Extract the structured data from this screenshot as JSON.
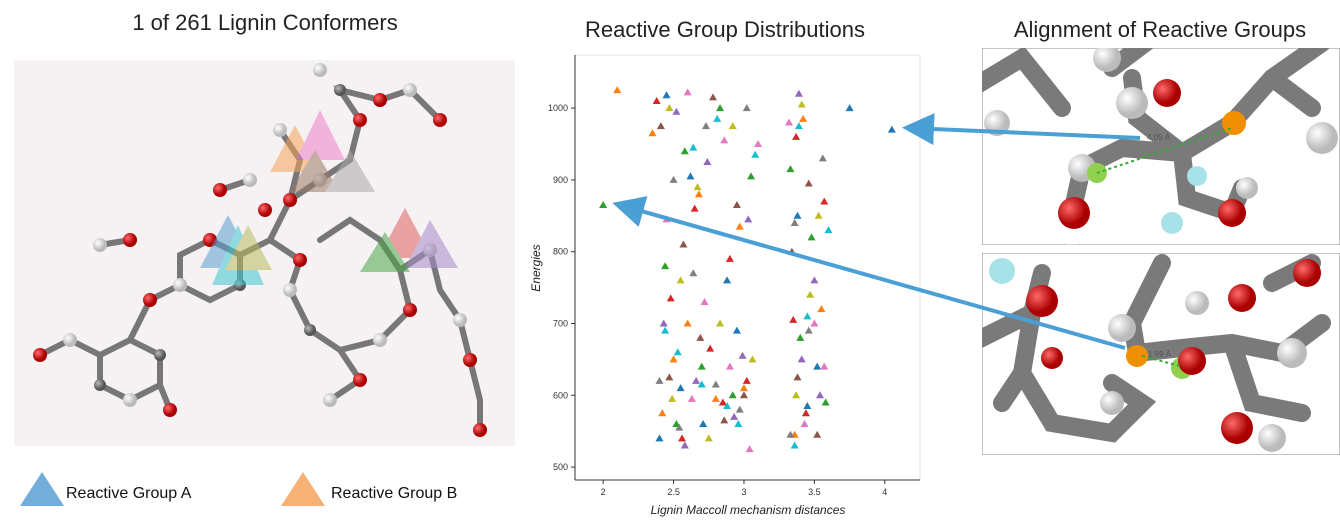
{
  "left_panel": {
    "title": "1 of 261 Lignin Conformers",
    "legend": [
      "Reactive Group A",
      "Reactive Group B"
    ]
  },
  "right_panel": {
    "title": "Alignment of Reactive Groups",
    "annotations": [
      "4.05 Å",
      "1.99 Å"
    ]
  },
  "chart_data": {
    "type": "scatter",
    "title": "Reactive Group Distributions",
    "x_label": "Lignin Maccoll mechanism distances",
    "y_label": "Energies",
    "xlim": [
      1.8,
      4.25
    ],
    "ylim": [
      482,
      1074
    ],
    "xticks": [
      2,
      2.5,
      3,
      3.5,
      4
    ],
    "yticks": [
      500,
      600,
      700,
      800,
      900,
      1000
    ],
    "series": [
      {
        "color": "#1f77b4",
        "x": [
          4.05,
          3.75,
          2.45,
          2.62,
          2.88,
          3.38,
          3.52,
          2.55,
          2.71,
          3.45,
          2.95,
          2.4
        ],
        "y": [
          970,
          1000,
          1018,
          905,
          760,
          850,
          640,
          610,
          560,
          585,
          690,
          540
        ]
      },
      {
        "color": "#ff7f0e",
        "x": [
          2.1,
          2.35,
          2.68,
          2.97,
          3.42,
          3.55,
          2.5,
          2.8,
          3.36,
          2.6,
          3.0,
          2.42
        ],
        "y": [
          1025,
          965,
          880,
          835,
          985,
          720,
          650,
          595,
          545,
          700,
          610,
          575
        ]
      },
      {
        "color": "#2ca02c",
        "x": [
          2.0,
          2.58,
          2.83,
          3.05,
          3.33,
          3.48,
          2.44,
          2.7,
          2.92,
          3.4,
          2.52,
          3.58
        ],
        "y": [
          865,
          940,
          1000,
          905,
          915,
          820,
          780,
          640,
          600,
          680,
          560,
          590
        ]
      },
      {
        "color": "#d62728",
        "x": [
          2.38,
          2.65,
          2.9,
          3.37,
          3.57,
          2.48,
          2.76,
          3.02,
          3.44,
          2.56,
          2.85,
          3.35
        ],
        "y": [
          1010,
          860,
          790,
          960,
          870,
          735,
          665,
          620,
          575,
          540,
          590,
          705
        ]
      },
      {
        "color": "#9467bd",
        "x": [
          2.52,
          2.74,
          3.03,
          3.39,
          3.5,
          2.43,
          2.66,
          2.93,
          3.41,
          2.58,
          2.99,
          3.54
        ],
        "y": [
          995,
          925,
          845,
          1020,
          760,
          700,
          620,
          570,
          650,
          530,
          655,
          600
        ]
      },
      {
        "color": "#8c564b",
        "x": [
          2.41,
          2.78,
          2.95,
          3.46,
          3.34,
          2.57,
          2.69,
          3.0,
          3.52,
          2.47,
          2.86,
          3.38
        ],
        "y": [
          975,
          1015,
          865,
          895,
          800,
          810,
          680,
          600,
          545,
          625,
          565,
          625
        ]
      },
      {
        "color": "#e377c2",
        "x": [
          2.6,
          2.86,
          3.1,
          3.32,
          3.5,
          2.45,
          2.72,
          2.9,
          3.43,
          2.63,
          3.04,
          3.57
        ],
        "y": [
          1022,
          955,
          950,
          980,
          700,
          845,
          730,
          640,
          560,
          595,
          525,
          640
        ]
      },
      {
        "color": "#7f7f7f",
        "x": [
          2.5,
          2.73,
          3.02,
          3.36,
          3.56,
          2.4,
          2.64,
          2.97,
          3.46,
          2.54,
          2.8,
          3.33
        ],
        "y": [
          900,
          975,
          1000,
          840,
          930,
          620,
          770,
          580,
          690,
          555,
          615,
          545
        ]
      },
      {
        "color": "#bcbd22",
        "x": [
          2.47,
          2.67,
          2.92,
          3.41,
          3.53,
          2.55,
          2.83,
          3.06,
          3.37,
          2.49,
          2.75,
          3.47
        ],
        "y": [
          1000,
          890,
          975,
          1005,
          850,
          760,
          700,
          650,
          600,
          595,
          540,
          740
        ]
      },
      {
        "color": "#17becf",
        "x": [
          2.64,
          2.81,
          3.08,
          3.39,
          3.6,
          2.44,
          2.7,
          2.96,
          3.45,
          2.53,
          2.88,
          3.36
        ],
        "y": [
          945,
          985,
          935,
          975,
          830,
          690,
          615,
          560,
          710,
          660,
          585,
          530
        ]
      }
    ]
  }
}
